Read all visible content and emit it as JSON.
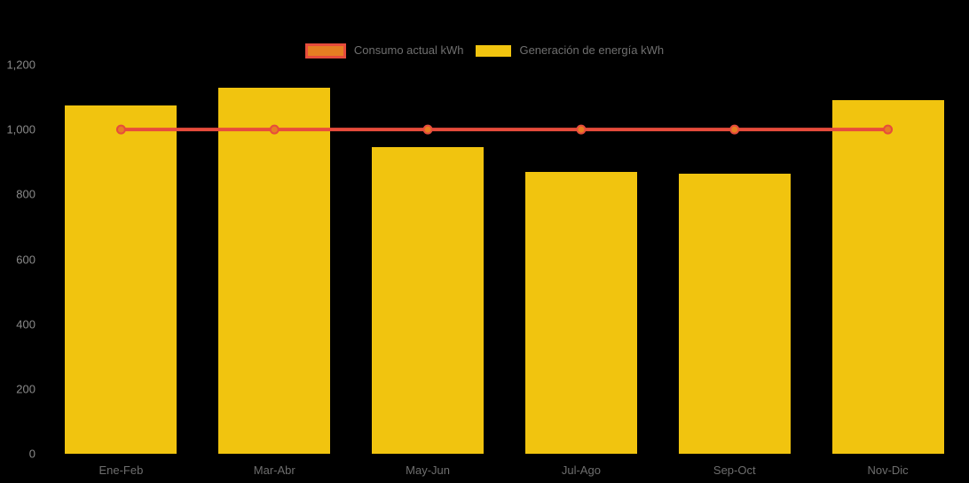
{
  "chart_data": {
    "type": "bar",
    "title": "",
    "categories": [
      "Ene-Feb",
      "Mar-Abr",
      "May-Jun",
      "Jul-Ago",
      "Sep-Oct",
      "Nov-Dic"
    ],
    "series": [
      {
        "name": "Consumo actual kWh",
        "type": "line",
        "values": [
          1000,
          1000,
          1000,
          1000,
          1000,
          1000
        ],
        "line_color": "#e74c3c",
        "marker_fill": "#e67e22",
        "marker_stroke": "#e74c3c"
      },
      {
        "name": "Generación de energía kWh",
        "type": "bar",
        "values": [
          1075,
          1130,
          945,
          870,
          863,
          1090
        ],
        "color": "#f1c40f"
      }
    ],
    "xlabel": "",
    "ylabel": "",
    "ylim": [
      0,
      1200
    ],
    "yticks": [
      0,
      200,
      400,
      600,
      800,
      1000,
      1200
    ],
    "ytick_labels": [
      "0",
      "200",
      "400",
      "600",
      "800",
      "1,000",
      "1,200"
    ],
    "grid": false,
    "legend_position": "top",
    "background": "#000000"
  },
  "legend": {
    "items": [
      {
        "label": "Consumo actual kWh",
        "fill": "#e67e22",
        "border": "#e74c3c"
      },
      {
        "label": "Generación de energía kWh",
        "fill": "#f1c40f",
        "border": "#f1c40f"
      }
    ]
  }
}
